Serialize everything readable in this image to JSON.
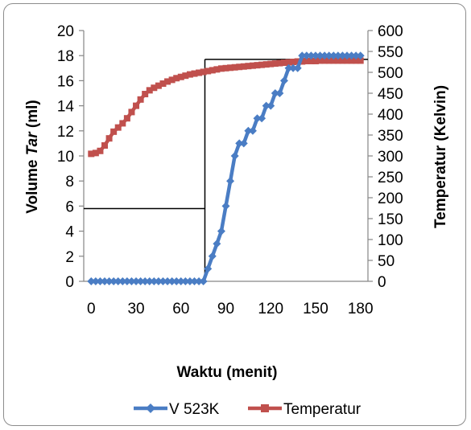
{
  "chart_data": {
    "type": "line",
    "xlabel": "Waktu (menit)",
    "ylabel_left": {
      "prefix": "Volume ",
      "italic": "Tar",
      "suffix": " (ml)"
    },
    "ylabel_right": "Temperatur (Kelvin)",
    "xlim": [
      -5,
      185
    ],
    "xticks": [
      0,
      30,
      60,
      90,
      120,
      150,
      180
    ],
    "ylim_left": [
      0,
      20
    ],
    "yticks_left": [
      0,
      2,
      4,
      6,
      8,
      10,
      12,
      14,
      16,
      18,
      20
    ],
    "ylim_right": [
      0,
      600
    ],
    "yticks_right": [
      0,
      50,
      100,
      150,
      200,
      250,
      300,
      350,
      400,
      450,
      500,
      550,
      600
    ],
    "grid": false,
    "legend_position": "bottom",
    "series": [
      {
        "name": "V 523K",
        "axis": "left",
        "color": "#4a7dc4",
        "marker": "diamond",
        "points": [
          [
            0,
            0
          ],
          [
            3,
            0
          ],
          [
            6,
            0
          ],
          [
            9,
            0
          ],
          [
            12,
            0
          ],
          [
            15,
            0
          ],
          [
            18,
            0
          ],
          [
            21,
            0
          ],
          [
            24,
            0
          ],
          [
            27,
            0
          ],
          [
            30,
            0
          ],
          [
            33,
            0
          ],
          [
            36,
            0
          ],
          [
            39,
            0
          ],
          [
            42,
            0
          ],
          [
            45,
            0
          ],
          [
            48,
            0
          ],
          [
            51,
            0
          ],
          [
            54,
            0
          ],
          [
            57,
            0
          ],
          [
            60,
            0
          ],
          [
            63,
            0
          ],
          [
            66,
            0
          ],
          [
            69,
            0
          ],
          [
            72,
            0
          ],
          [
            75,
            0
          ],
          [
            78,
            1
          ],
          [
            81,
            2
          ],
          [
            84,
            3
          ],
          [
            87,
            4
          ],
          [
            90,
            6
          ],
          [
            93,
            8
          ],
          [
            96,
            10
          ],
          [
            99,
            11
          ],
          [
            102,
            11
          ],
          [
            105,
            12
          ],
          [
            108,
            12
          ],
          [
            111,
            13
          ],
          [
            114,
            13
          ],
          [
            117,
            14
          ],
          [
            120,
            14
          ],
          [
            123,
            15
          ],
          [
            126,
            15
          ],
          [
            129,
            16
          ],
          [
            132,
            17
          ],
          [
            135,
            17
          ],
          [
            138,
            17
          ],
          [
            141,
            18
          ],
          [
            144,
            18
          ],
          [
            147,
            18
          ],
          [
            150,
            18
          ],
          [
            153,
            18
          ],
          [
            156,
            18
          ],
          [
            159,
            18
          ],
          [
            162,
            18
          ],
          [
            165,
            18
          ],
          [
            168,
            18
          ],
          [
            171,
            18
          ],
          [
            174,
            18
          ],
          [
            177,
            18
          ],
          [
            180,
            18
          ]
        ]
      },
      {
        "name": "Temperatur",
        "axis": "right",
        "color": "#c0504d",
        "marker": "square",
        "points": [
          [
            0,
            305
          ],
          [
            3,
            307
          ],
          [
            6,
            312
          ],
          [
            9,
            325
          ],
          [
            12,
            342
          ],
          [
            15,
            358
          ],
          [
            18,
            368
          ],
          [
            21,
            378
          ],
          [
            24,
            390
          ],
          [
            27,
            405
          ],
          [
            30,
            420
          ],
          [
            33,
            435
          ],
          [
            36,
            448
          ],
          [
            39,
            457
          ],
          [
            42,
            463
          ],
          [
            45,
            468
          ],
          [
            48,
            473
          ],
          [
            51,
            478
          ],
          [
            54,
            482
          ],
          [
            57,
            486
          ],
          [
            60,
            489
          ],
          [
            63,
            492
          ],
          [
            66,
            495
          ],
          [
            69,
            497
          ],
          [
            72,
            499
          ],
          [
            75,
            501
          ],
          [
            78,
            503
          ],
          [
            81,
            505
          ],
          [
            84,
            507
          ],
          [
            87,
            509
          ],
          [
            90,
            510
          ],
          [
            93,
            511
          ],
          [
            96,
            512
          ],
          [
            99,
            513
          ],
          [
            102,
            514
          ],
          [
            105,
            515
          ],
          [
            108,
            516
          ],
          [
            111,
            517
          ],
          [
            114,
            518
          ],
          [
            117,
            519
          ],
          [
            120,
            520
          ],
          [
            123,
            521
          ],
          [
            126,
            522
          ],
          [
            129,
            523
          ],
          [
            132,
            524
          ],
          [
            135,
            525
          ],
          [
            138,
            526
          ],
          [
            141,
            526
          ],
          [
            144,
            527
          ],
          [
            147,
            527
          ],
          [
            150,
            527
          ],
          [
            153,
            528
          ],
          [
            156,
            528
          ],
          [
            159,
            528
          ],
          [
            162,
            528
          ],
          [
            165,
            528
          ],
          [
            168,
            528
          ],
          [
            171,
            528
          ],
          [
            174,
            528
          ],
          [
            177,
            528
          ],
          [
            180,
            528
          ]
        ]
      }
    ],
    "reference_lines": [
      {
        "kind": "horizontal",
        "axis": "left",
        "y": 5.8,
        "x_from": -5,
        "x_to": 76
      },
      {
        "kind": "vertical",
        "x": 76,
        "y_from": 0,
        "y_to": 17.7
      },
      {
        "kind": "horizontal",
        "axis": "left",
        "y": 17.7,
        "x_from": 76,
        "x_to": 185
      }
    ]
  }
}
